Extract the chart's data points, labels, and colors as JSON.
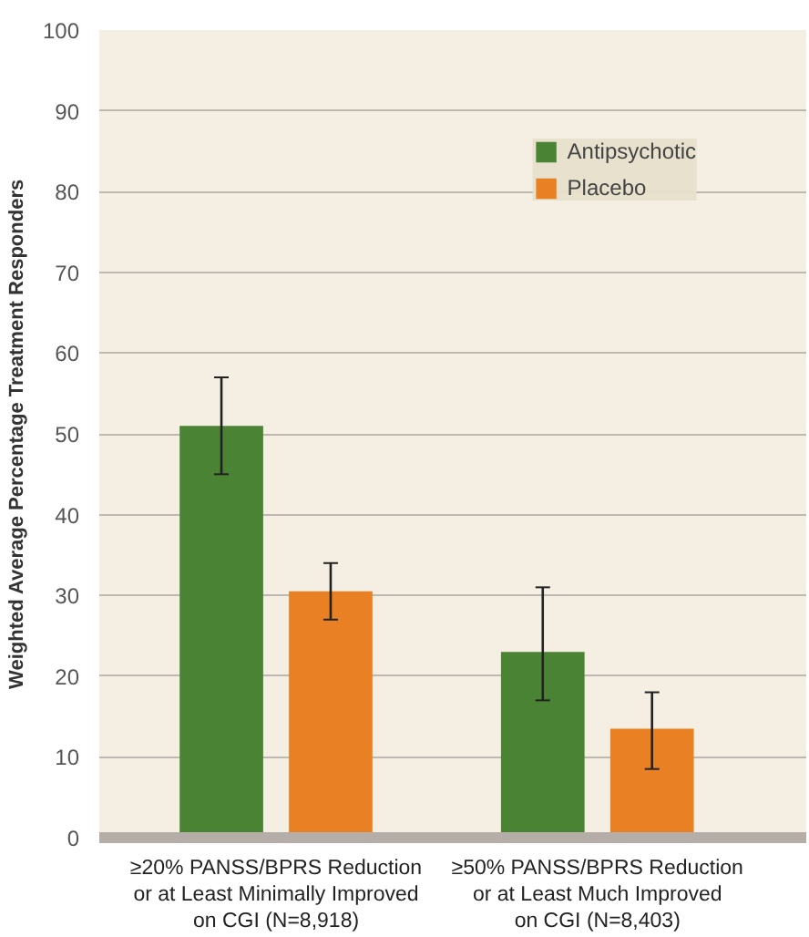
{
  "chart_data": {
    "type": "bar",
    "ylabel": "Weighted Average Percentage Treatment Responders",
    "categories": [
      "≥20% PANSS/BPRS Reduction\nor at Least Minimally Improved\non CGI (N=8,918)",
      "≥50% PANSS/BPRS Reduction\nor at Least Much Improved\non CGI (N=8,403)"
    ],
    "series": [
      {
        "name": "Antipsychotic",
        "color": "#4a8333",
        "values": [
          51,
          23
        ],
        "errors": [
          [
            45,
            57
          ],
          [
            17,
            31
          ]
        ]
      },
      {
        "name": "Placebo",
        "color": "#e98124",
        "values": [
          30.5,
          13.5
        ],
        "errors": [
          [
            27,
            34
          ],
          [
            8.5,
            18
          ]
        ]
      }
    ],
    "ylim": [
      0,
      100
    ],
    "yticks": [
      0,
      10,
      20,
      30,
      40,
      50,
      60,
      70,
      80,
      90,
      100
    ],
    "grid": "y",
    "legend": "top right"
  }
}
